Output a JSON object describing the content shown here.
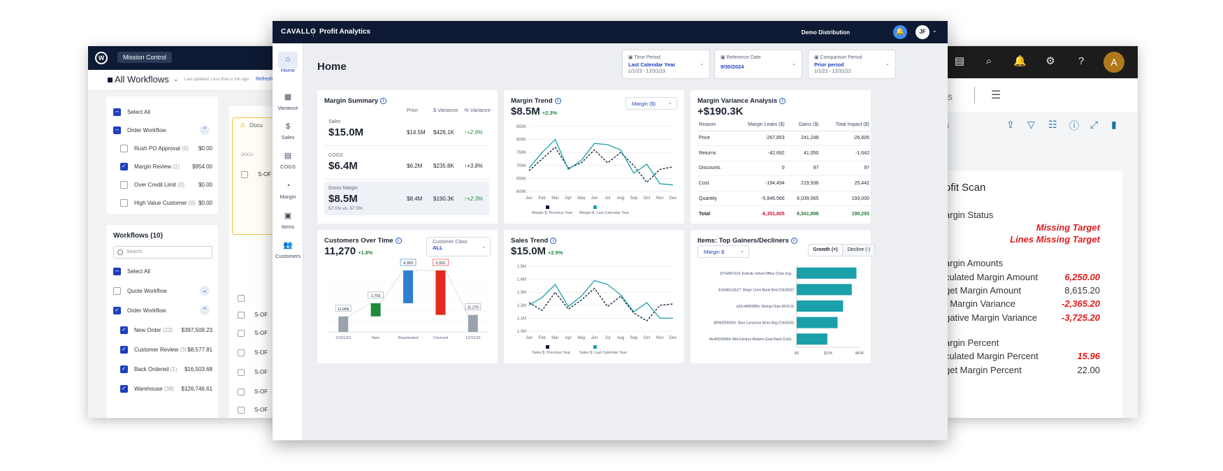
{
  "left_window": {
    "pill": "Mission Control",
    "title": "All Workflows",
    "updated": "Last updated: Less than a min ago",
    "refresh": "Refresh",
    "select_all": "Select All",
    "order_workflow": "Order Workflow",
    "rows_top": [
      {
        "label": "Rush PO Approval",
        "count": "(0)",
        "amount": "$0.00",
        "checked": false
      },
      {
        "label": "Margin Review",
        "count": "(1)",
        "amount": "$954.00",
        "checked": true
      },
      {
        "label": "Over Credit Limit",
        "count": "(0)",
        "amount": "$0.00",
        "checked": false
      },
      {
        "label": "High Value Customer",
        "count": "(0)",
        "amount": "$0.00",
        "checked": false
      }
    ],
    "workflows_heading": "Workflows (10)",
    "search_placeholder": "Search",
    "quote_workflow": "Quote Workflow",
    "rows_bottom": [
      {
        "label": "New Order",
        "count": "(23)",
        "amount": "$397,509.23"
      },
      {
        "label": "Customer Review",
        "count": "(3)",
        "amount": "$8,577.81"
      },
      {
        "label": "Back Ordered",
        "count": "(1)",
        "amount": "$16,503.68"
      },
      {
        "label": "Warehouse",
        "count": "(38)",
        "amount": "$126,746.61"
      }
    ],
    "warn_text": "Docu",
    "col_docu": "DOCU",
    "so_rows": [
      "S-OF",
      "S-OF",
      "S-OF",
      "S-OF",
      "S-OF",
      "S-OF",
      "S-OF"
    ]
  },
  "right_window": {
    "avatar": "A",
    "tab_suffix": "ts",
    "s_letter": "s",
    "title": "ofit Scan",
    "margin_status": "argin Status",
    "missing_target": "Missing Target",
    "lines_missing": "Lines Missing Target",
    "margin_amounts": "argin Amounts",
    "amounts": [
      {
        "label": "culated Margin Amount",
        "value": "6,250.00",
        "red": true
      },
      {
        "label": "get Margin Amount",
        "value": "8,615.20",
        "red": false
      },
      {
        "label": "t Margin Variance",
        "value": "-2,365.20",
        "red": true
      },
      {
        "label": "gative Margin Variance",
        "value": "-3,725.20",
        "red": true
      }
    ],
    "margin_percent": "argin Percent",
    "percents": [
      {
        "label": "culated Margin Percent",
        "value": "15.96",
        "red": true
      },
      {
        "label": "get Margin Percent",
        "value": "22.00",
        "red": false
      }
    ]
  },
  "main": {
    "brand": "CAVALLO",
    "app": "Profit Analytics",
    "org": "Demo Distribution",
    "user_initials": "JF",
    "nav": [
      {
        "label": "Home",
        "icon": "⌂"
      },
      {
        "label": "Variance",
        "icon": "▦"
      },
      {
        "label": "Sales",
        "icon": "$"
      },
      {
        "label": "COGS",
        "icon": "▤"
      },
      {
        "label": "Margin",
        "icon": "◔"
      },
      {
        "label": "Items",
        "icon": "▣"
      },
      {
        "label": "Customers",
        "icon": "👥"
      }
    ],
    "page_title": "Home",
    "filters": [
      {
        "label": "Time Period",
        "value": "Last Calendar Year",
        "sub": "1/1/23 - 12/31/23"
      },
      {
        "label": "Reference Date",
        "value": "9/30/2024",
        "sub": ""
      },
      {
        "label": "Comparison Period",
        "value": "Prior period",
        "sub": "1/1/22 - 12/31/22"
      }
    ],
    "margin_summary": {
      "title": "Margin Summary",
      "headers": [
        "Prior",
        "$ Variance",
        "% Variance"
      ],
      "rows": [
        {
          "label": "Sales",
          "value": "$15.0M",
          "prior": "$14.5M",
          "var": "$426.1K",
          "pct": "+2.9%",
          "dir": "↑",
          "sub": ""
        },
        {
          "label": "COGS",
          "value": "$6.4M",
          "prior": "$6.2M",
          "var": "$235.8K",
          "pct": "+3.8%",
          "dir": "↑",
          "sub": ""
        },
        {
          "label": "Gross Margin",
          "value": "$8.5M",
          "prior": "$8.4M",
          "var": "$190.3K",
          "pct": "+2.3%",
          "dir": "↑",
          "sub": "57.1% vs. 57.5%"
        }
      ]
    },
    "margin_trend": {
      "title": "Margin Trend",
      "value": "$8.5M",
      "delta": "+2.3%",
      "dropdown": "Margin ($)",
      "legend": [
        "Margin $: Previous Year",
        "Margin $: Last Calendar Year"
      ]
    },
    "variance": {
      "title": "Margin Variance Analysis",
      "value": "+$190.3K",
      "headers": [
        "Reason",
        "Margin Leaks ($)",
        "Gains ($)",
        "Total Impact ($)"
      ],
      "rows": [
        [
          "Price",
          "-267,853",
          "241,248",
          "-26,605"
        ],
        [
          "Returns",
          "-42,692",
          "41,050",
          "-1,642"
        ],
        [
          "Discounts",
          "0",
          "97",
          "97"
        ],
        [
          "Cost",
          "-194,494",
          "219,936",
          "25,442"
        ],
        [
          "Quantity",
          "-5,846,566",
          "6,039,565",
          "193,000"
        ]
      ],
      "total": [
        "Total",
        "-6,351,605",
        "6,541,898",
        "190,293"
      ]
    },
    "customers": {
      "title": "Customers Over Time",
      "value": "11,270",
      "delta": "+1.8%",
      "class_label": "Customer Class",
      "class_value": "ALL"
    },
    "sales_trend": {
      "title": "Sales Trend",
      "value": "$15.0M",
      "delta": "+2.9%",
      "legend": [
        "Sales $: Previous Year",
        "Sales $: Last Calendar Year"
      ]
    },
    "items": {
      "title": "Items: Top Gainers/Decliners",
      "dropdown": "Margin $",
      "tab_growth": "Growth (+)",
      "tab_decline": "Decline (-)"
    }
  },
  "chart_data": [
    {
      "type": "line",
      "categories": [
        "Jan",
        "Feb",
        "Mar",
        "Apr",
        "May",
        "Jun",
        "Jul",
        "Aug",
        "Sep",
        "Oct",
        "Nov",
        "Dec"
      ],
      "ylim": [
        600,
        850
      ],
      "yticks": [
        "850K",
        "800K",
        "750K",
        "700K",
        "650K",
        "600K"
      ],
      "series": [
        {
          "name": "Margin $: Previous Year",
          "values": [
            680,
            725,
            770,
            690,
            710,
            760,
            710,
            750,
            700,
            635,
            685,
            695
          ],
          "color": "#0e1a33",
          "dashed": true
        },
        {
          "name": "Margin $: Last Calendar Year",
          "values": [
            690,
            750,
            800,
            685,
            720,
            785,
            780,
            760,
            670,
            705,
            630,
            625
          ],
          "color": "#1aa0a8",
          "dashed": false
        }
      ]
    },
    {
      "type": "line",
      "categories": [
        "Jan",
        "Feb",
        "Mar",
        "Apr",
        "May",
        "Jun",
        "Jul",
        "Aug",
        "Sep",
        "Oct",
        "Nov",
        "Dec"
      ],
      "ylim": [
        1.0,
        1.5
      ],
      "yticks": [
        "1.5M",
        "1.4M",
        "1.3M",
        "1.2M",
        "1.1M",
        "1.0M"
      ],
      "series": [
        {
          "name": "Sales $: Previous Year",
          "values": [
            1.22,
            1.16,
            1.3,
            1.17,
            1.24,
            1.33,
            1.19,
            1.27,
            1.14,
            1.08,
            1.2,
            1.21
          ],
          "color": "#0e1a33",
          "dashed": true
        },
        {
          "name": "Sales $: Last Calendar Year",
          "values": [
            1.2,
            1.26,
            1.36,
            1.19,
            1.27,
            1.39,
            1.36,
            1.28,
            1.15,
            1.22,
            1.1,
            1.1
          ],
          "color": "#1aa0a8",
          "dashed": false
        }
      ]
    },
    {
      "type": "bar",
      "categories": [
        "01/01/23",
        "New",
        "Reactivated",
        "Churned",
        "12/31/23"
      ],
      "values": [
        11068,
        1753,
        4369,
        5920,
        11270
      ],
      "data_labels": [
        "11,068",
        "1,753",
        "4,369",
        "5,920",
        "11,270"
      ]
    },
    {
      "type": "bar",
      "categories": [
        "227e897c01f: Eclectic Velvet Office Chair, Erg...",
        "3c54461c5b27: Beige Linen Bunk Bed (CAS602)",
        "a32c4f4f3285b: Dining Chair (ROLO)",
        "899d3f290041: Blue Luxurious Bean Bag (CAS603)",
        "f4c4093359bf: Mid-Century Modern Goat Rack (CAS..."
      ],
      "values": [
        38000,
        35000,
        29500,
        26000,
        19500
      ],
      "xticks": [
        "$0",
        "$20K",
        "$40K"
      ],
      "xlim": [
        0,
        40000
      ]
    }
  ]
}
